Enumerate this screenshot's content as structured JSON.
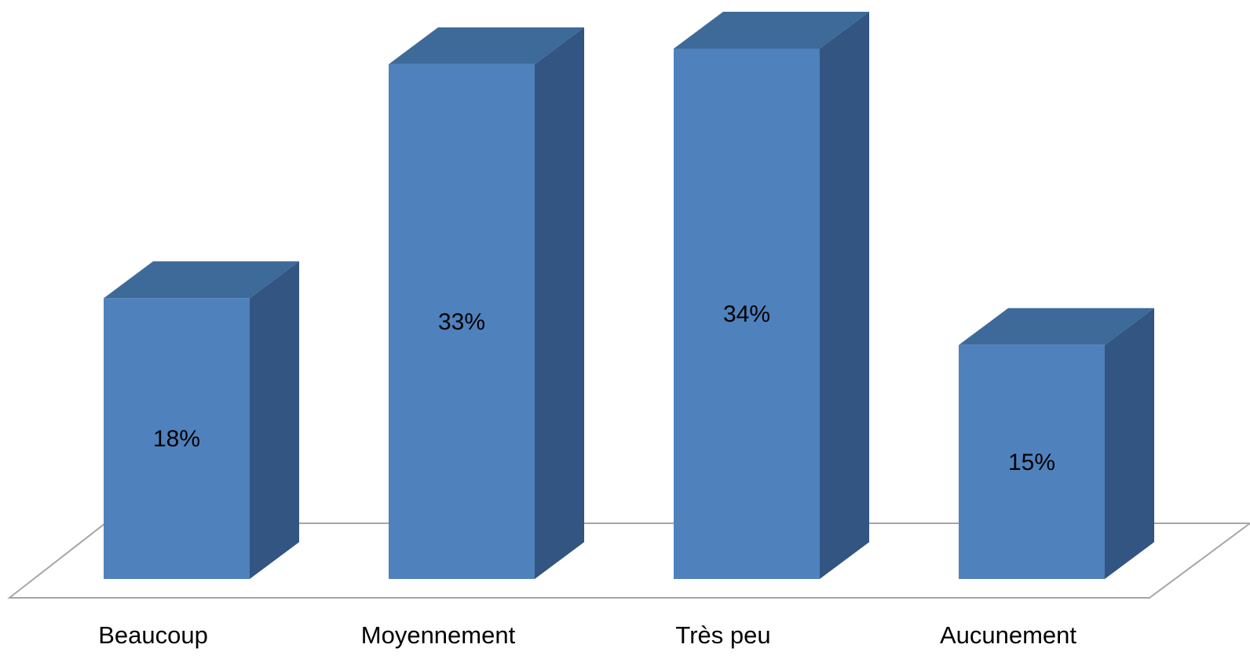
{
  "chart_data": {
    "type": "bar",
    "categories": [
      "Beaucoup",
      "Moyennement",
      "Très peu",
      "Aucunement"
    ],
    "values": [
      18,
      33,
      34,
      15
    ],
    "value_labels": [
      "18%",
      "33%",
      "34%",
      "15%"
    ],
    "unit": "%",
    "title": "",
    "xlabel": "",
    "ylabel": "",
    "ylim": [
      0,
      34
    ],
    "grid": false,
    "legend": "none",
    "style": "3d-column",
    "colors": {
      "bar_front": "#4f81bd",
      "bar_top": "#3e6a9a",
      "bar_side": "#325581",
      "floor_line": "#a6a6a6"
    }
  }
}
